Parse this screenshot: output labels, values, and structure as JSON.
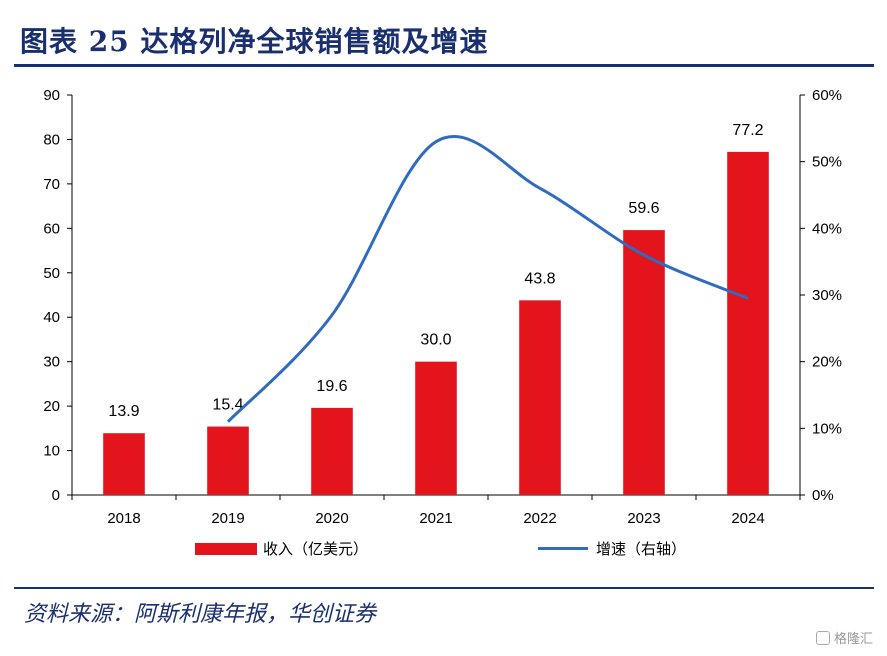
{
  "title": "图表 25    达格列净全球销售额及增速",
  "source": "资料来源：阿斯利康年报，华创证券",
  "watermark": "格隆汇",
  "colors": {
    "bar": "#e3141b",
    "line": "#2f6bbf",
    "title": "#1a2f6e"
  },
  "chart_data": {
    "type": "bar",
    "categories": [
      "2018",
      "2019",
      "2020",
      "2021",
      "2022",
      "2023",
      "2024"
    ],
    "series": [
      {
        "name": "收入（亿美元）",
        "type": "bar",
        "axis": "left",
        "values": [
          13.9,
          15.4,
          19.6,
          30.0,
          43.8,
          59.6,
          77.2
        ],
        "labels": [
          "13.9",
          "15.4",
          "19.6",
          "30.0",
          "43.8",
          "59.6",
          "77.2"
        ]
      },
      {
        "name": "增速（右轴）",
        "type": "line",
        "axis": "right",
        "values": [
          null,
          0.11,
          0.27,
          0.53,
          0.46,
          0.36,
          0.295
        ]
      }
    ],
    "ylim_left": [
      0,
      90
    ],
    "yticks_left": [
      "0",
      "10",
      "20",
      "30",
      "40",
      "50",
      "60",
      "70",
      "80",
      "90"
    ],
    "ylim_right": [
      0,
      0.6
    ],
    "yticks_right": [
      "0%",
      "10%",
      "20%",
      "30%",
      "40%",
      "50%",
      "60%"
    ],
    "grid": false,
    "legend_position": "bottom"
  }
}
